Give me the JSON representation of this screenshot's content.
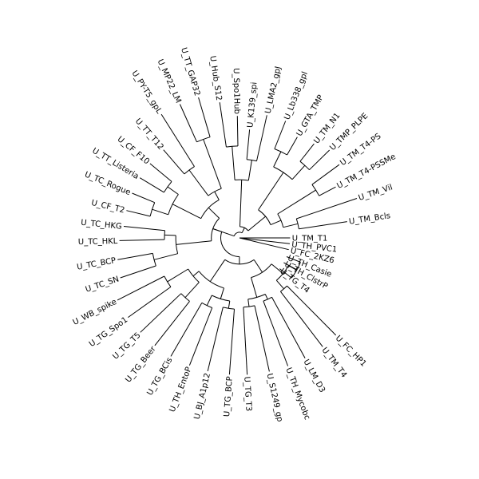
{
  "tree": {
    "layout": "circular",
    "line_color": "#000000",
    "leaves": [
      "U_TM_T1",
      "U_TM_Bcls",
      "U_TM_Vil",
      "U_TM_T4-PSSMe",
      "U_TM_T4-PS",
      "U_TMP_PLPE",
      "U_TM_N1",
      "U_GTA_TMP",
      "U_Lb338_gpl",
      "U_LMA2_gpJ",
      "U_K139_spi",
      "U_Spo1Hub",
      "U_Hub_S12",
      "U_TT_GAP32",
      "U_MP22_LM",
      "U_PY-T5_gpL",
      "U_TT_T12",
      "U_CF_F10",
      "U_TT_Listeria",
      "U_TC_Rogue",
      "U_CF_T2",
      "U_TC_HKG",
      "U_TC_HKL",
      "U_TC_BCP",
      "U_TC_SN",
      "U_WB_spike",
      "U_TG_Spo1",
      "U_TG_T5",
      "U_TG_Beer",
      "U_TG_BCis",
      "U_TH_EntoP",
      "U_BJ_A1p12",
      "U_TG_BCP",
      "U_TG_T3",
      "U_S1249_gp",
      "U_TH_Mycobc",
      "U_LM_D3",
      "U_TM_T4",
      "U_FC_HP1",
      "U_TG_T4",
      "U_TH_ClstrP",
      "U_TH_Casie",
      "U_FC_2KZ6",
      "U_TH_PVC1"
    ],
    "leaf_angles_deg": [
      0,
      -8.6,
      -18.6,
      -27.9,
      -36.3,
      -44.3,
      -51.6,
      -60.2,
      -68.5,
      -77.4,
      -84.7,
      -91,
      -98.3,
      -106.3,
      -114,
      -122.3,
      -130.8,
      -140.3,
      -148.9,
      -157.4,
      -166.4,
      -174.3,
      -181.3,
      -190.1,
      -198.5,
      -207,
      -215.5,
      -223.6,
      -231.8,
      -239.9,
      -248.6,
      -256.6,
      -265.8,
      -273.2,
      -282.6,
      -290.7,
      -298.6,
      -307.4,
      -314.7,
      -322.5,
      -330.9,
      -338.3,
      -346.6,
      -353.4
    ],
    "leaf_depth": [
      0.27,
      0.58,
      0.66,
      0.58,
      0.66,
      0.67,
      0.64,
      0.62,
      0.67,
      0.67,
      0.58,
      0.65,
      0.73,
      0.78,
      0.78,
      0.78,
      0.62,
      0.62,
      0.62,
      0.62,
      0.62,
      0.62,
      0.64,
      0.66,
      0.67,
      0.73,
      0.73,
      0.73,
      0.73,
      0.73,
      0.73,
      0.73,
      0.73,
      0.73,
      0.73,
      0.73,
      0.73,
      0.73,
      0.73,
      0.27,
      0.27,
      0.27,
      0.27,
      0.27
    ],
    "nodes": [
      {
        "children": [
          0,
          42,
          43
        ],
        "depth": 0.0
      },
      {
        "children": [
          1,
          2
        ],
        "depth": 0.32
      },
      {
        "children": [
          3,
          4
        ],
        "depth": 0.48
      },
      {
        "children": [
          45,
          46
        ],
        "depth": 0.24
      },
      {
        "children": [
          5,
          6
        ],
        "depth": 0.52
      },
      {
        "children": [
          7,
          8
        ],
        "depth": 0.51
      },
      {
        "children": [
          48,
          49
        ],
        "depth": 0.42
      },
      {
        "children": [
          47,
          50
        ],
        "depth": 0.18
      },
      {
        "children": [
          9,
          10
        ],
        "depth": 0.42
      },
      {
        "children": [
          11,
          12
        ],
        "depth": 0.49
      },
      {
        "children": [
          52,
          53
        ],
        "depth": 0.31
      },
      {
        "children": [
          51,
          54
        ],
        "depth": 0.06
      },
      {
        "children": [
          13,
          14
        ],
        "depth": 0.56
      },
      {
        "children": [
          15,
          16
        ],
        "depth": 0.45
      },
      {
        "children": [
          56,
          57
        ],
        "depth": 0.28
      },
      {
        "children": [
          17,
          18
        ],
        "depth": 0.47
      },
      {
        "children": [
          19,
          20
        ],
        "depth": 0.49
      },
      {
        "children": [
          59,
          60
        ],
        "depth": 0.4
      },
      {
        "children": [
          58,
          61
        ],
        "depth": 0.23
      },
      {
        "children": [
          21,
          22
        ],
        "depth": 0.4
      },
      {
        "children": [
          23,
          24
        ],
        "depth": 0.47
      },
      {
        "children": [
          63,
          64
        ],
        "depth": 0.34
      },
      {
        "children": [
          62,
          65
        ],
        "depth": 0.15
      },
      {
        "children": [
          25,
          26
        ],
        "depth": 0.45
      },
      {
        "children": [
          27,
          28
        ],
        "depth": 0.43
      },
      {
        "children": [
          67,
          68
        ],
        "depth": 0.32
      },
      {
        "children": [
          29,
          30
        ],
        "depth": 0.4
      },
      {
        "children": [
          31,
          32
        ],
        "depth": 0.38
      },
      {
        "children": [
          70,
          71
        ],
        "depth": 0.34
      },
      {
        "children": [
          69,
          72
        ],
        "depth": 0.28
      },
      {
        "children": [
          33,
          34
        ],
        "depth": 0.37
      },
      {
        "children": [
          35,
          36
        ],
        "depth": 0.36
      },
      {
        "children": [
          74,
          75
        ],
        "depth": 0.33
      },
      {
        "children": [
          37,
          38
        ],
        "depth": 0.36
      },
      {
        "children": [
          39,
          40,
          41
        ],
        "depth": 0.35
      },
      {
        "children": [
          77,
          78
        ],
        "depth": 0.3
      },
      {
        "children": [
          76,
          79
        ],
        "depth": 0.22
      },
      {
        "children": [
          73,
          80
        ],
        "depth": 0.14
      },
      {
        "children": [
          66,
          81
        ],
        "depth": 0.1
      },
      {
        "children": [
          55,
          66
        ],
        "depth": 0.03
      }
    ]
  }
}
